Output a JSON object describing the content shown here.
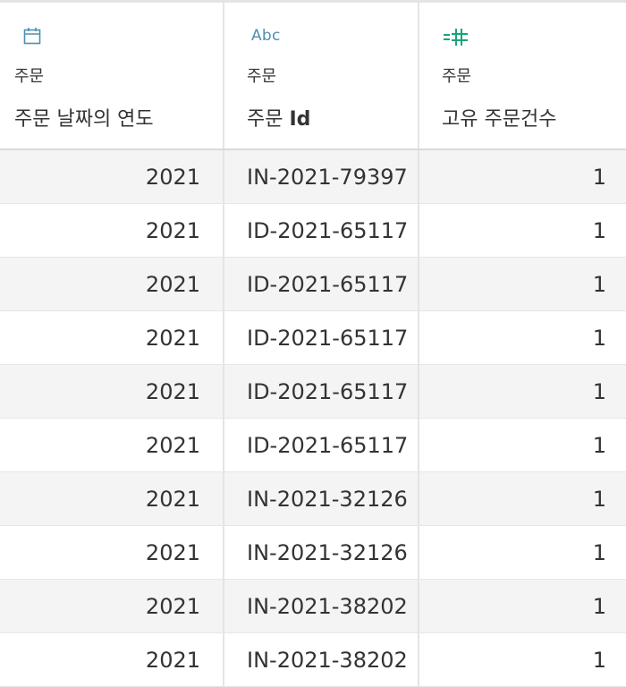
{
  "columns": [
    {
      "icon": "calendar-icon",
      "source": "주문",
      "name": "주문 날짜의 연도"
    },
    {
      "icon": "abc-string-icon",
      "icon_text": "Abc",
      "source": "주문",
      "name_prefix": "주문 ",
      "name_bold": "Id"
    },
    {
      "icon": "measure-hash-icon",
      "source": "주문",
      "name": "고유 주문건수"
    }
  ],
  "rows": [
    {
      "year": "2021",
      "order_id": "IN-2021-79397",
      "count": "1"
    },
    {
      "year": "2021",
      "order_id": "ID-2021-65117",
      "count": "1"
    },
    {
      "year": "2021",
      "order_id": "ID-2021-65117",
      "count": "1"
    },
    {
      "year": "2021",
      "order_id": "ID-2021-65117",
      "count": "1"
    },
    {
      "year": "2021",
      "order_id": "ID-2021-65117",
      "count": "1"
    },
    {
      "year": "2021",
      "order_id": "ID-2021-65117",
      "count": "1"
    },
    {
      "year": "2021",
      "order_id": "IN-2021-32126",
      "count": "1"
    },
    {
      "year": "2021",
      "order_id": "IN-2021-32126",
      "count": "1"
    },
    {
      "year": "2021",
      "order_id": "IN-2021-38202",
      "count": "1"
    },
    {
      "year": "2021",
      "order_id": "IN-2021-38202",
      "count": "1"
    }
  ],
  "colors": {
    "date_icon": "#4e8fb0",
    "string_icon": "#4e8fb0",
    "measure_icon": "#1aa37a",
    "alt_row": "#f4f4f4"
  }
}
